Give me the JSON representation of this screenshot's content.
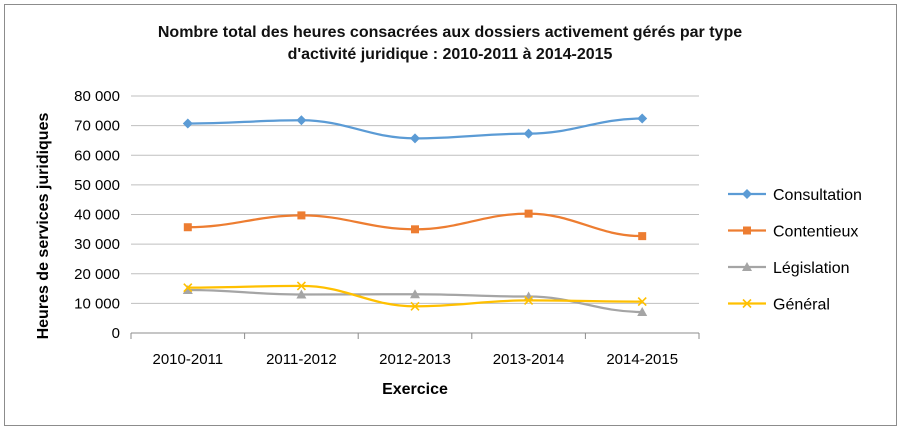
{
  "chart_data": {
    "type": "line",
    "title": "Nombre total des heures consacrées aux dossiers activement gérés par type d'activité juridique : 2010-2011 à 2014-2015",
    "title_lines": [
      "Nombre total des heures consacrées aux dossiers activement gérés par type",
      "d'activité juridique : 2010-2011 à 2014-2015"
    ],
    "xlabel": "Exercice",
    "ylabel": "Heures de services juridiques",
    "categories": [
      "2010-2011",
      "2011-2012",
      "2012-2013",
      "2013-2014",
      "2014-2015"
    ],
    "ylim": [
      0,
      80000
    ],
    "yticks": [
      {
        "value": 0,
        "label": "0"
      },
      {
        "value": 10000,
        "label": "10 000"
      },
      {
        "value": 20000,
        "label": "20 000"
      },
      {
        "value": 30000,
        "label": "30 000"
      },
      {
        "value": 40000,
        "label": "40 000"
      },
      {
        "value": 50000,
        "label": "50 000"
      },
      {
        "value": 60000,
        "label": "60 000"
      },
      {
        "value": 70000,
        "label": "70 000"
      },
      {
        "value": 80000,
        "label": "80 000"
      }
    ],
    "grid": true,
    "legend_position": "right",
    "series": [
      {
        "name": "Consultation",
        "color": "#5b9bd5",
        "marker": "diamond",
        "values": [
          70700,
          71800,
          65700,
          67300,
          72400
        ]
      },
      {
        "name": "Contentieux",
        "color": "#ed7d31",
        "marker": "square",
        "values": [
          35700,
          39700,
          35000,
          40300,
          32700
        ]
      },
      {
        "name": "Législation",
        "color": "#a5a5a5",
        "marker": "triangle",
        "values": [
          14500,
          13000,
          13100,
          12300,
          7100
        ]
      },
      {
        "name": "Général",
        "color": "#ffc000",
        "marker": "x",
        "values": [
          15300,
          15900,
          9000,
          11000,
          10600
        ]
      }
    ]
  }
}
